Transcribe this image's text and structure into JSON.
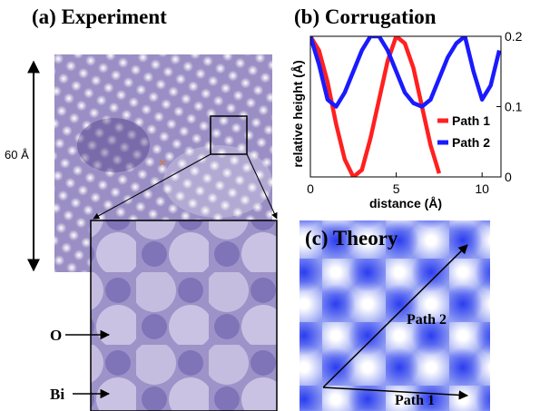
{
  "panel_a": {
    "title": "(a) Experiment",
    "scale_label": "60 Å",
    "labels": [
      "O",
      "Bi"
    ]
  },
  "panel_c": {
    "title": "(c) Theory",
    "paths": [
      "Path 2",
      "Path 1"
    ]
  },
  "chart_data": {
    "type": "line",
    "title": "(b)  Corrugation",
    "xlabel": "distance (Å)",
    "ylabel": "relative height (Å)",
    "x": [
      0,
      0.5,
      1,
      1.5,
      2,
      2.5,
      3,
      3.5,
      4,
      4.5,
      5,
      5.5,
      6,
      6.5,
      7,
      7.5,
      8,
      8.5,
      9,
      9.5,
      10,
      10.5,
      11
    ],
    "series": [
      {
        "name": "Path 1",
        "color": "#ff2020",
        "values": [
          0.2,
          0.18,
          0.135,
          0.075,
          0.025,
          0.0,
          0.01,
          0.055,
          0.11,
          0.165,
          0.2,
          0.19,
          0.155,
          0.1,
          0.045,
          0.005,
          null,
          null,
          null,
          null,
          null,
          null,
          null
        ]
      },
      {
        "name": "Path 2",
        "color": "#1a1aff",
        "values": [
          0.2,
          0.16,
          0.11,
          0.1,
          0.12,
          0.15,
          0.18,
          0.2,
          0.2,
          0.18,
          0.15,
          0.12,
          0.105,
          0.1,
          0.11,
          0.14,
          0.17,
          0.19,
          0.2,
          0.15,
          0.11,
          0.13,
          0.18
        ]
      }
    ],
    "xlim": [
      0,
      11.1
    ],
    "xticks": [
      0,
      5,
      10
    ],
    "ylim": [
      0,
      0.2
    ],
    "yticks": [
      0,
      0.1,
      0.2
    ],
    "ytick_side": "right",
    "legend": "lower-right"
  }
}
